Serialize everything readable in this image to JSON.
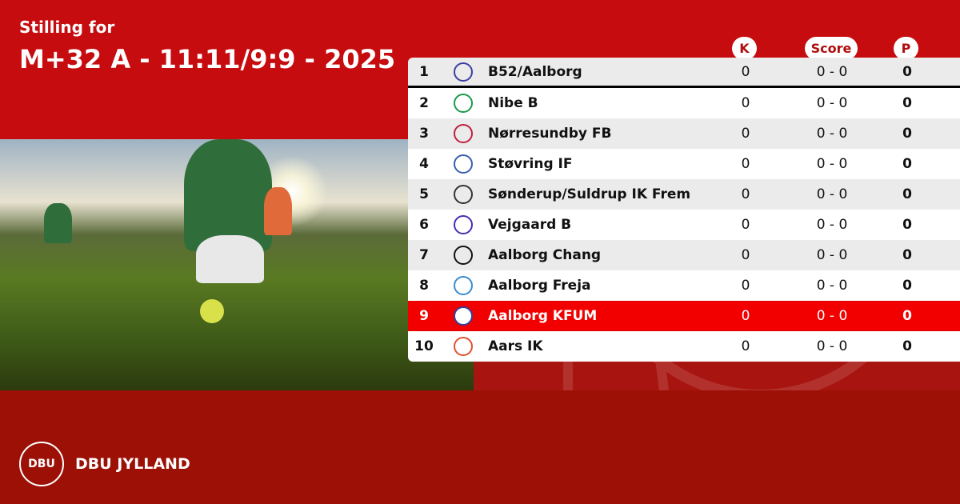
{
  "header": {
    "subtitle": "Stilling for",
    "title": "M+32 A - 11:11/9:9 - 2025"
  },
  "columns": {
    "k": "K",
    "score": "Score",
    "p": "P"
  },
  "colors": {
    "brand_red": "#c60c0f",
    "highlight_row": "#f20000",
    "footer": "#9c1006"
  },
  "rows": [
    {
      "pos": "1",
      "name": "B52/Aalborg",
      "k": "0",
      "score": "0 - 0",
      "p": "0",
      "logo_color": "#3b3fa0"
    },
    {
      "pos": "2",
      "name": "Nibe B",
      "k": "0",
      "score": "0 - 0",
      "p": "0",
      "logo_color": "#1a9a4a"
    },
    {
      "pos": "3",
      "name": "Nørresundby FB",
      "k": "0",
      "score": "0 - 0",
      "p": "0",
      "logo_color": "#c0203a"
    },
    {
      "pos": "4",
      "name": "Støvring IF",
      "k": "0",
      "score": "0 - 0",
      "p": "0",
      "logo_color": "#3a5fb0"
    },
    {
      "pos": "5",
      "name": "Sønderup/Suldrup IK Frem",
      "k": "0",
      "score": "0 - 0",
      "p": "0",
      "logo_color": "#333333"
    },
    {
      "pos": "6",
      "name": "Vejgaard B",
      "k": "0",
      "score": "0 - 0",
      "p": "0",
      "logo_color": "#4a2bb0"
    },
    {
      "pos": "7",
      "name": "Aalborg Chang",
      "k": "0",
      "score": "0 - 0",
      "p": "0",
      "logo_color": "#111111"
    },
    {
      "pos": "8",
      "name": "Aalborg Freja",
      "k": "0",
      "score": "0 - 0",
      "p": "0",
      "logo_color": "#3a8ad0"
    },
    {
      "pos": "9",
      "name": "Aalborg KFUM",
      "k": "0",
      "score": "0 - 0",
      "p": "0",
      "logo_color": "#3040a0"
    },
    {
      "pos": "10",
      "name": "Aars IK",
      "k": "0",
      "score": "0 - 0",
      "p": "0",
      "logo_color": "#e05030"
    }
  ],
  "footer": {
    "brand": "DBU JYLLAND",
    "seal_text": "DBU"
  }
}
